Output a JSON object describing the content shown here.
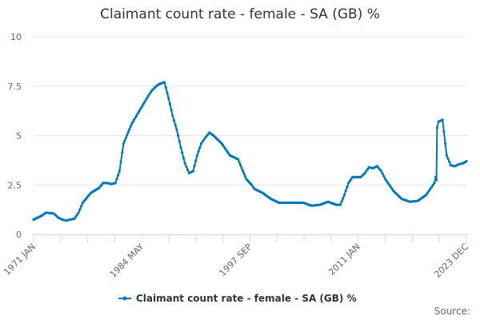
{
  "title": "Claimant count rate - female - SA (GB) %",
  "legend": {
    "label": "Claimant count rate - female - SA (GB) %",
    "color": "#0077bf"
  },
  "source_label": "Source:",
  "colors": {
    "series": "#0077bf",
    "grid": "#e6e6e6",
    "axis": "#ccd6eb"
  },
  "chart_data": {
    "type": "line",
    "title": "Claimant count rate - female - SA (GB) %",
    "xlabel": "",
    "ylabel": "",
    "ylim": [
      0,
      10
    ],
    "y_ticks": [
      "0",
      "2.5",
      "5",
      "7.5",
      "10"
    ],
    "x_tick_labels": [
      "1971 JAN",
      "1984 MAY",
      "1997 SEP",
      "2011 JAN",
      "2023 DEC"
    ],
    "grid": true,
    "legend_position": "bottom",
    "series": [
      {
        "name": "Claimant count rate - female - SA (GB) %",
        "x": [
          "1971 JAN",
          "1972 JAN",
          "1972 JUL",
          "1973 JUL",
          "1974 JAN",
          "1974 JUL",
          "1975 JAN",
          "1975 JUL",
          "1976 JAN",
          "1976 JUL",
          "1977 JAN",
          "1978 JAN",
          "1979 JAN",
          "1979 JUL",
          "1980 JAN",
          "1980 JUL",
          "1981 JAN",
          "1981 JUL",
          "1982 JAN",
          "1983 JAN",
          "1984 JAN",
          "1985 JAN",
          "1985 JUL",
          "1986 JAN",
          "1986 MAY",
          "1987 JAN",
          "1987 JUL",
          "1988 JAN",
          "1988 JUL",
          "1989 JAN",
          "1989 JUL",
          "1990 JAN",
          "1990 JUL",
          "1991 JAN",
          "1991 JUL",
          "1992 JAN",
          "1992 JUL",
          "1993 JAN",
          "1994 JAN",
          "1995 JAN",
          "1996 JAN",
          "1997 JAN",
          "1997 SEP",
          "1998 JAN",
          "1999 JAN",
          "2000 JAN",
          "2001 JAN",
          "2002 JAN",
          "2003 JAN",
          "2004 JAN",
          "2005 JAN",
          "2006 JAN",
          "2007 JAN",
          "2008 JAN",
          "2008 JUL",
          "2009 JAN",
          "2009 JUL",
          "2010 JAN",
          "2011 JAN",
          "2011 JUL",
          "2012 JAN",
          "2012 JUL",
          "2013 JAN",
          "2013 JUL",
          "2014 JAN",
          "2015 JAN",
          "2016 JAN",
          "2017 JAN",
          "2018 JAN",
          "2019 JAN",
          "2019 JUL",
          "2020 JAN",
          "2020 MAR",
          "2020 APR",
          "2020 MAY",
          "2020 JUL",
          "2021 JAN",
          "2021 MAY",
          "2021 JUL",
          "2022 JAN",
          "2022 JUL",
          "2023 JAN",
          "2023 JUL",
          "2023 DEC"
        ],
        "values": [
          0.75,
          0.95,
          1.1,
          1.05,
          0.85,
          0.75,
          0.7,
          0.75,
          0.8,
          1.1,
          1.6,
          2.1,
          2.35,
          2.6,
          2.6,
          2.55,
          2.6,
          3.2,
          4.6,
          5.6,
          6.3,
          7.0,
          7.3,
          7.5,
          7.6,
          7.7,
          6.9,
          6.0,
          5.3,
          4.4,
          3.6,
          3.1,
          3.2,
          4.0,
          4.6,
          4.9,
          5.15,
          5.0,
          4.6,
          4.0,
          3.8,
          2.8,
          2.5,
          2.3,
          2.1,
          1.8,
          1.6,
          1.6,
          1.6,
          1.6,
          1.45,
          1.5,
          1.65,
          1.5,
          1.5,
          2.0,
          2.6,
          2.9,
          2.9,
          3.1,
          3.4,
          3.35,
          3.45,
          3.2,
          2.8,
          2.2,
          1.8,
          1.65,
          1.7,
          2.0,
          2.3,
          2.6,
          2.9,
          2.75,
          5.4,
          5.7,
          5.8,
          4.6,
          4.0,
          3.5,
          3.45,
          3.55,
          3.6,
          3.7
        ]
      }
    ]
  }
}
